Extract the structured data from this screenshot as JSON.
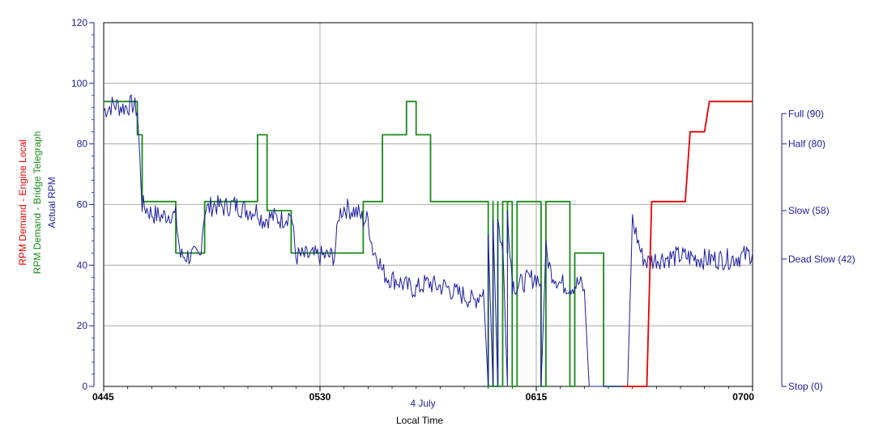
{
  "chart_data": {
    "type": "line",
    "xlabel": "Local Time",
    "date_label": "4 July",
    "x_ticks": [
      "0445",
      "0530",
      "0615",
      "0700"
    ],
    "x_range": [
      "04:45",
      "07:00"
    ],
    "y_ticks": [
      "0",
      "20",
      "40",
      "60",
      "80",
      "100",
      "120"
    ],
    "ylim": [
      0,
      120
    ],
    "ylabels": [
      {
        "text": "RPM Demand - Engine Local",
        "color": "#e60000"
      },
      {
        "text": "RPM Demand - Bridge Telegraph",
        "color": "#1a8a1a"
      },
      {
        "text": "Actual RPM",
        "color": "#1c1ca0"
      }
    ],
    "right_axis_labels": [
      {
        "text": "Full (90)",
        "value": 90
      },
      {
        "text": "Half (80)",
        "value": 80
      },
      {
        "text": "Slow (58)",
        "value": 58
      },
      {
        "text": "Dead Slow (42)",
        "value": 42
      },
      {
        "text": "Stop (0)",
        "value": 0
      }
    ],
    "grid": true,
    "colors": {
      "engine_local": "#e60000",
      "bridge_telegraph": "#1a8a1a",
      "actual_rpm": "#1c1ca0",
      "axis": "#1c1ca0"
    },
    "series": [
      {
        "key": "bridge_telegraph",
        "x": [
          "04:45",
          "04:52",
          "04:52",
          "04:53",
          "04:53",
          "05:00",
          "05:00",
          "05:06",
          "05:06",
          "05:17",
          "05:17",
          "05:19",
          "05:19",
          "05:24",
          "05:24",
          "05:39",
          "05:39",
          "05:43",
          "05:43",
          "05:48",
          "05:48",
          "05:50",
          "05:50",
          "05:53",
          "05:53",
          "06:05",
          "06:05",
          "06:06",
          "06:06",
          "06:06",
          "06:06",
          "06:07",
          "06:07",
          "06:07",
          "06:07",
          "06:08",
          "06:08",
          "06:09",
          "06:09",
          "06:09",
          "06:09",
          "06:10",
          "06:10",
          "06:11",
          "06:11",
          "06:16",
          "06:16",
          "06:17",
          "06:17",
          "06:17",
          "06:17",
          "06:22",
          "06:22",
          "06:23",
          "06:23",
          "06:29",
          "06:29",
          "06:33"
        ],
        "y": [
          94,
          94,
          83,
          83,
          61,
          61,
          44,
          44,
          61,
          61,
          83,
          83,
          58,
          58,
          44,
          44,
          61,
          61,
          83,
          83,
          94,
          94,
          83,
          83,
          61,
          61,
          0,
          0,
          61,
          61,
          0,
          0,
          61,
          61,
          0,
          0,
          61,
          61,
          44,
          44,
          61,
          61,
          0,
          0,
          61,
          61,
          0,
          0,
          44,
          44,
          61,
          61,
          0,
          0,
          44,
          44,
          0,
          0
        ]
      },
      {
        "key": "actual_rpm",
        "x": [
          "04:45",
          "04:47",
          "04:49",
          "04:51",
          "04:52",
          "04:53",
          "04:55",
          "04:57",
          "04:59",
          "05:00",
          "05:01",
          "05:03",
          "05:05",
          "05:06",
          "05:08",
          "05:10",
          "05:12",
          "05:15",
          "05:17",
          "05:18",
          "05:20",
          "05:22",
          "05:24",
          "05:25",
          "05:27",
          "05:29",
          "05:31",
          "05:33",
          "05:34",
          "05:35",
          "05:37",
          "05:38",
          "05:39",
          "05:40",
          "05:41",
          "05:42",
          "05:43",
          "05:44",
          "05:46",
          "05:48",
          "05:50",
          "05:51",
          "05:52",
          "05:53",
          "05:54",
          "05:56",
          "05:58",
          "06:00",
          "06:02",
          "06:04",
          "06:05",
          "06:05",
          "06:06",
          "06:06",
          "06:07",
          "06:07",
          "06:08",
          "06:08",
          "06:09",
          "06:09",
          "06:10",
          "06:10",
          "06:11",
          "06:13",
          "06:15",
          "06:16",
          "06:16",
          "06:17",
          "06:18",
          "06:20",
          "06:22",
          "06:24",
          "06:25",
          "06:26",
          "06:28",
          "06:31",
          "06:34",
          "06:35",
          "06:37",
          "06:38",
          "06:40",
          "06:45",
          "06:50",
          "06:55",
          "06:58",
          "07:00"
        ],
        "y": [
          91,
          93,
          92,
          93,
          91,
          60,
          57,
          56,
          57,
          56,
          43,
          43,
          43,
          58,
          60,
          59,
          60,
          58,
          58,
          55,
          56,
          55,
          57,
          43,
          43,
          43,
          43,
          43,
          57,
          59,
          58,
          57,
          55,
          55,
          45,
          43,
          38,
          36,
          35,
          33,
          32,
          33,
          34,
          34,
          33,
          33,
          31,
          30,
          28,
          32,
          0,
          50,
          0,
          55,
          0,
          55,
          44,
          48,
          0,
          58,
          35,
          34,
          33,
          35,
          36,
          34,
          0,
          45,
          38,
          34,
          33,
          34,
          32,
          0,
          0,
          0,
          0,
          55,
          43,
          41,
          42,
          43,
          42,
          42,
          43,
          44
        ]
      },
      {
        "key": "engine_local",
        "x": [
          "06:33",
          "06:38",
          "06:39",
          "06:46",
          "06:47",
          "06:50",
          "06:51",
          "07:00"
        ],
        "y": [
          0,
          0,
          61,
          61,
          84,
          84,
          94,
          94
        ]
      }
    ]
  }
}
